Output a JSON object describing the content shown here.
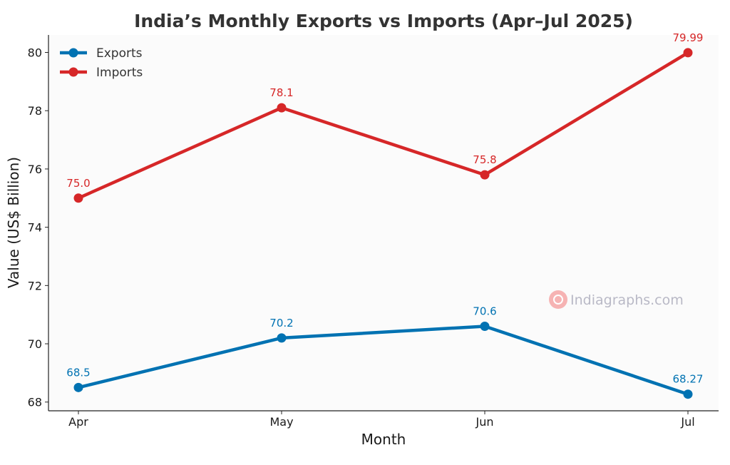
{
  "chart_data": {
    "type": "line",
    "title": "India’s Monthly Exports vs Imports (Apr–Jul 2025)",
    "xlabel": "Month",
    "ylabel": "Value (US$ Billion)",
    "categories": [
      "Apr",
      "May",
      "Jun",
      "Jul"
    ],
    "ylim": [
      67.7,
      80.6
    ],
    "yticks": [
      68,
      70,
      72,
      74,
      76,
      78,
      80
    ],
    "grid": false,
    "legend_position": "top-left",
    "series": [
      {
        "name": "Exports",
        "color": "#0072b2",
        "values": [
          68.5,
          70.2,
          70.6,
          68.27
        ],
        "labels": [
          "68.5",
          "70.2",
          "70.6",
          "68.27"
        ]
      },
      {
        "name": "Imports",
        "color": "#d62728",
        "values": [
          75.0,
          78.1,
          75.8,
          79.99
        ],
        "labels": [
          "75.0",
          "78.1",
          "75.8",
          "79.99"
        ]
      }
    ],
    "watermark": "Indiagraphs.com"
  }
}
